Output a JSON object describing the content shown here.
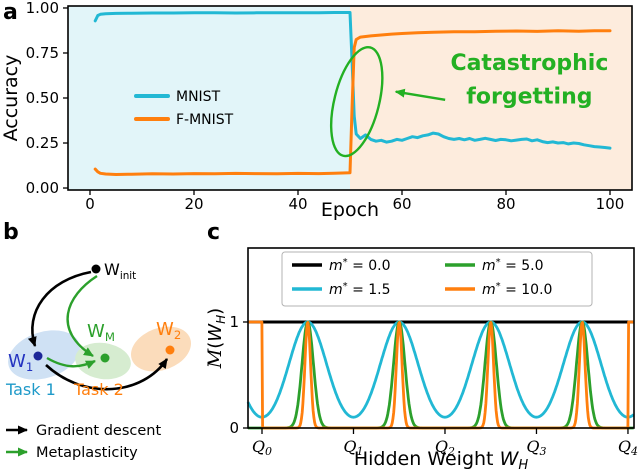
{
  "panels": {
    "a": "a",
    "b": "b",
    "c": "c"
  },
  "chart_data": [
    {
      "id": "accuracy-vs-epoch",
      "type": "line",
      "xlabel": "Epoch",
      "ylabel": "Accuracy",
      "xlim": [
        -4.23,
        104.23
      ],
      "ylim": [
        -0.011,
        1.011
      ],
      "grid": false,
      "xticks": [
        {
          "value": 0,
          "label": "0"
        },
        {
          "value": 20,
          "label": "20"
        },
        {
          "value": 40,
          "label": "40"
        },
        {
          "value": 60,
          "label": "60"
        },
        {
          "value": 80,
          "label": "80"
        },
        {
          "value": 100,
          "label": "100"
        }
      ],
      "yticks": [
        {
          "value": 0,
          "label": "0.00"
        },
        {
          "value": 0.25,
          "label": "0.25"
        },
        {
          "value": 0.5,
          "label": "0.50"
        },
        {
          "value": 0.75,
          "label": "0.75"
        },
        {
          "value": 1,
          "label": "1.00"
        }
      ],
      "background_regions": [
        {
          "from": -4.23,
          "to": 50,
          "color": "#e2f5f9"
        },
        {
          "from": 50,
          "to": 104.23,
          "color": "#fdecdd"
        }
      ],
      "legend_position": "left-center",
      "series": [
        {
          "name": "MNIST",
          "color": "#22b8d4",
          "points": [
            [
              1,
              0.928
            ],
            [
              1.5,
              0.958
            ],
            [
              2,
              0.965
            ],
            [
              3,
              0.968
            ],
            [
              5,
              0.97
            ],
            [
              8,
              0.971
            ],
            [
              12,
              0.972
            ],
            [
              16,
              0.972
            ],
            [
              20,
              0.973
            ],
            [
              24,
              0.973
            ],
            [
              28,
              0.972
            ],
            [
              32,
              0.973
            ],
            [
              36,
              0.974
            ],
            [
              40,
              0.974
            ],
            [
              44,
              0.974
            ],
            [
              47,
              0.975
            ],
            [
              50,
              0.975
            ],
            [
              50.4,
              0.7
            ],
            [
              50.8,
              0.4
            ],
            [
              51.2,
              0.3
            ],
            [
              52,
              0.275
            ],
            [
              53,
              0.295
            ],
            [
              54,
              0.27
            ],
            [
              55,
              0.26
            ],
            [
              56,
              0.265
            ],
            [
              57,
              0.255
            ],
            [
              58,
              0.26
            ],
            [
              59,
              0.27
            ],
            [
              60,
              0.265
            ],
            [
              61,
              0.275
            ],
            [
              62,
              0.285
            ],
            [
              63,
              0.28
            ],
            [
              64,
              0.29
            ],
            [
              65,
              0.295
            ],
            [
              66,
              0.305
            ],
            [
              67,
              0.3
            ],
            [
              68,
              0.285
            ],
            [
              69,
              0.275
            ],
            [
              70,
              0.27
            ],
            [
              71,
              0.275
            ],
            [
              72,
              0.268
            ],
            [
              73,
              0.275
            ],
            [
              74,
              0.265
            ],
            [
              75,
              0.27
            ],
            [
              76,
              0.276
            ],
            [
              77,
              0.27
            ],
            [
              78,
              0.264
            ],
            [
              79,
              0.27
            ],
            [
              80,
              0.268
            ],
            [
              81,
              0.262
            ],
            [
              82,
              0.266
            ],
            [
              83,
              0.27
            ],
            [
              84,
              0.272
            ],
            [
              85,
              0.262
            ],
            [
              86,
              0.268
            ],
            [
              87,
              0.258
            ],
            [
              88,
              0.252
            ],
            [
              89,
              0.256
            ],
            [
              90,
              0.25
            ],
            [
              91,
              0.252
            ],
            [
              92,
              0.245
            ],
            [
              93,
              0.25
            ],
            [
              94,
              0.247
            ],
            [
              95,
              0.24
            ],
            [
              96,
              0.235
            ],
            [
              97,
              0.23
            ],
            [
              98,
              0.228
            ],
            [
              99,
              0.225
            ],
            [
              100,
              0.222
            ]
          ]
        },
        {
          "name": "F-MNIST",
          "color": "#ff7f0e",
          "points": [
            [
              1,
              0.105
            ],
            [
              1.5,
              0.09
            ],
            [
              2,
              0.082
            ],
            [
              3,
              0.078
            ],
            [
              5,
              0.075
            ],
            [
              8,
              0.077
            ],
            [
              12,
              0.079
            ],
            [
              16,
              0.078
            ],
            [
              20,
              0.08
            ],
            [
              24,
              0.079
            ],
            [
              28,
              0.081
            ],
            [
              32,
              0.08
            ],
            [
              36,
              0.079
            ],
            [
              40,
              0.081
            ],
            [
              44,
              0.08
            ],
            [
              47,
              0.082
            ],
            [
              50,
              0.085
            ],
            [
              50.4,
              0.45
            ],
            [
              50.8,
              0.78
            ],
            [
              51.2,
              0.825
            ],
            [
              52,
              0.838
            ],
            [
              54,
              0.845
            ],
            [
              56,
              0.85
            ],
            [
              58,
              0.855
            ],
            [
              60,
              0.858
            ],
            [
              63,
              0.862
            ],
            [
              66,
              0.865
            ],
            [
              70,
              0.868
            ],
            [
              74,
              0.868
            ],
            [
              78,
              0.871
            ],
            [
              82,
              0.872
            ],
            [
              86,
              0.87
            ],
            [
              90,
              0.873
            ],
            [
              94,
              0.871
            ],
            [
              97,
              0.873
            ],
            [
              100,
              0.874
            ]
          ]
        }
      ],
      "annotation": {
        "lines": [
          "Catastrophic",
          "forgetting"
        ],
        "color": "#23b023",
        "ellipse": {
          "cx_epoch": 51.3,
          "cy_acc": 0.48,
          "rx_epoch": 4.3,
          "ry_acc": 0.31,
          "rotation_deg": 14
        },
        "arrow": {
          "from_epoch": 68.3,
          "from_acc": 0.49,
          "to_epoch": 58.8,
          "to_acc": 0.535
        },
        "text_center_epoch": 84.5,
        "text_acc": [
          0.655,
          0.47
        ]
      }
    },
    {
      "id": "metaplasticity-function",
      "type": "line",
      "xlabel": {
        "prefix": "Hidden Weight ",
        "var": "W",
        "sub": "H"
      },
      "ylabel": {
        "script": "M",
        "open": "(",
        "var": "W",
        "sub": "H",
        "close": ")"
      },
      "xlim": [
        -0.153,
        4.066
      ],
      "ylim": [
        0,
        1.698
      ],
      "xticks": [
        {
          "value": 0,
          "base": "Q",
          "sub": "0"
        },
        {
          "value": 1,
          "base": "Q",
          "sub": "1"
        },
        {
          "value": 2,
          "base": "Q",
          "sub": "2"
        },
        {
          "value": 3,
          "base": "Q",
          "sub": "3"
        },
        {
          "value": 4,
          "base": "Q",
          "sub": "4"
        }
      ],
      "yticks": [
        {
          "value": 0,
          "label": "0"
        },
        {
          "value": 1,
          "label": "1"
        }
      ],
      "peak_centers": [
        -0.5,
        0.5,
        1.5,
        2.5,
        3.5,
        4.5
      ],
      "series": [
        {
          "name": "m* = 0.0",
          "m": 0.0,
          "color": "#000000",
          "kind": "constant",
          "value": 1
        },
        {
          "name": "m* = 1.5",
          "m": 1.5,
          "color": "#22b8d4",
          "kind": "peaks",
          "sigma": 0.29
        },
        {
          "name": "m* = 5.0",
          "m": 5.0,
          "color": "#2ca02c",
          "kind": "peaks",
          "sigma": 0.088
        },
        {
          "name": "m* = 10.0",
          "m": 10.0,
          "color": "#ff7f0e",
          "kind": "peaks",
          "sigma": 0.044,
          "outside_value": 1,
          "range": [
            0,
            4
          ]
        }
      ],
      "legend_columns": 2
    }
  ],
  "panel_b": {
    "w_init": {
      "base": "W",
      "sub": "init",
      "color": "#000000",
      "dot_color": "#000000"
    },
    "w_1": {
      "base": "W",
      "sub": "1",
      "color": "#2433c0",
      "dot_color": "#1c2798"
    },
    "w_m": {
      "base": "W",
      "sub": "M",
      "color": "#2ca02c",
      "dot_color": "#2ca02c"
    },
    "w_2": {
      "base": "W",
      "sub": "2",
      "color": "#ff7f0e",
      "dot_color": "#ff7f0e"
    },
    "task1": {
      "label": "Task 1",
      "color": "#1f9ac9"
    },
    "task2": {
      "label": "Task 2",
      "color": "#ff7f0e"
    },
    "regions": {
      "task1_color": "#cfe1f4",
      "meta_color": "#d6ecd0",
      "task2_color": "#fbdcbb"
    },
    "legend": [
      {
        "label": "Gradient descent",
        "color": "#000000"
      },
      {
        "label": "Metaplasticity",
        "color": "#2ca02c"
      }
    ]
  }
}
